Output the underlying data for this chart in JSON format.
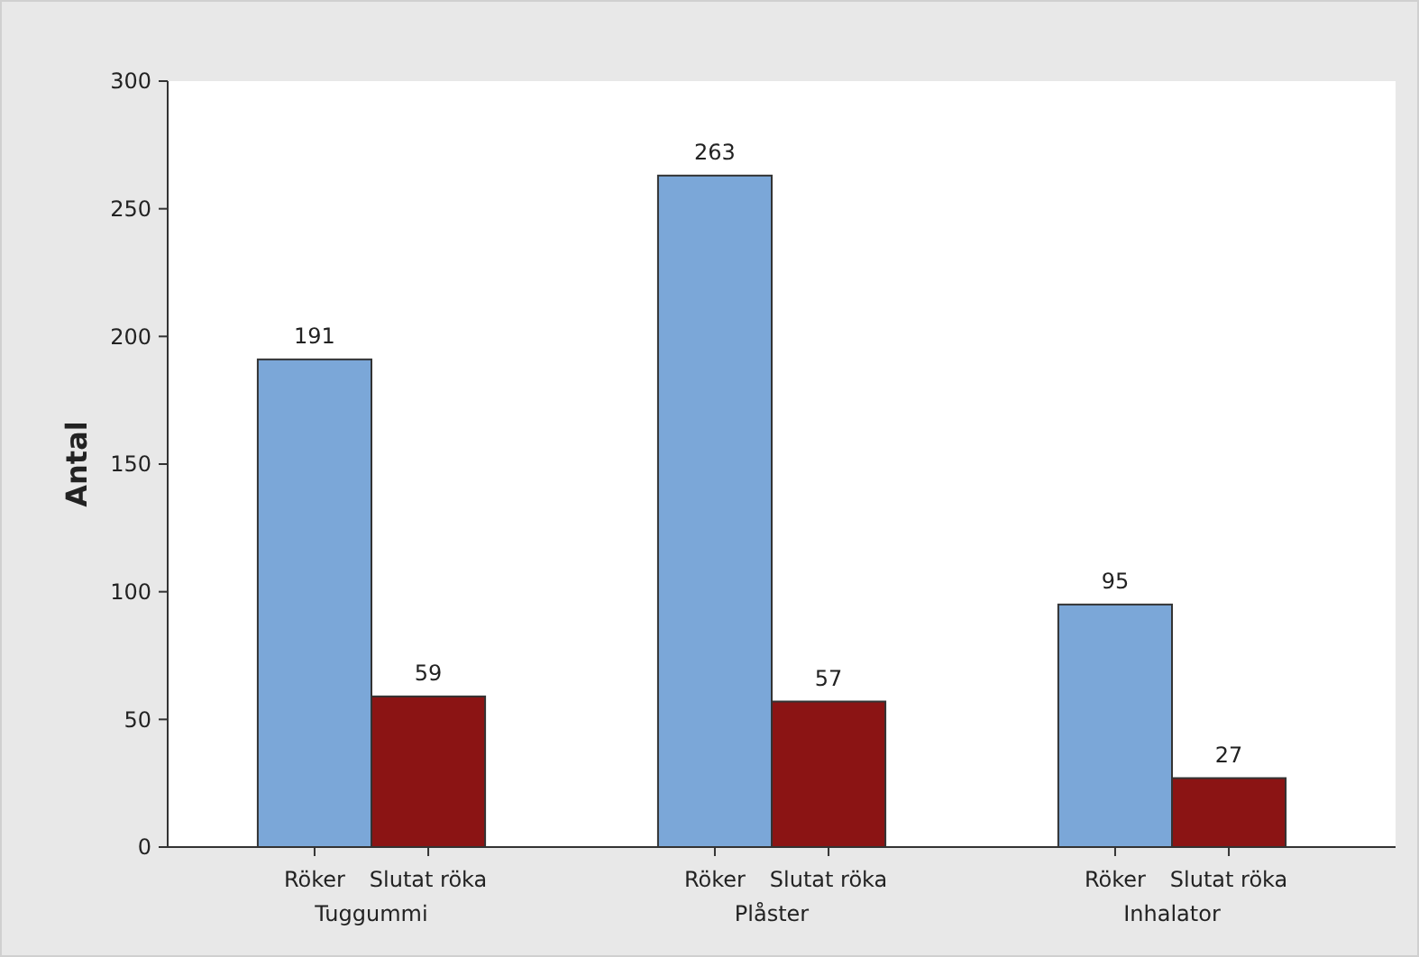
{
  "chart_data": {
    "type": "bar",
    "ylabel": "Antal",
    "categories": [
      "Tuggummi",
      "Plåster",
      "Inhalator"
    ],
    "series": [
      {
        "name": "Röker",
        "color": "#7ba7d8",
        "values": [
          191,
          263,
          95
        ]
      },
      {
        "name": "Slutat röka",
        "color": "#8b1414",
        "values": [
          59,
          57,
          27
        ]
      }
    ],
    "ylim": [
      0,
      300
    ],
    "yticks": [
      0,
      50,
      100,
      150,
      200,
      250,
      300
    ],
    "data_labels": true,
    "grid": false
  }
}
